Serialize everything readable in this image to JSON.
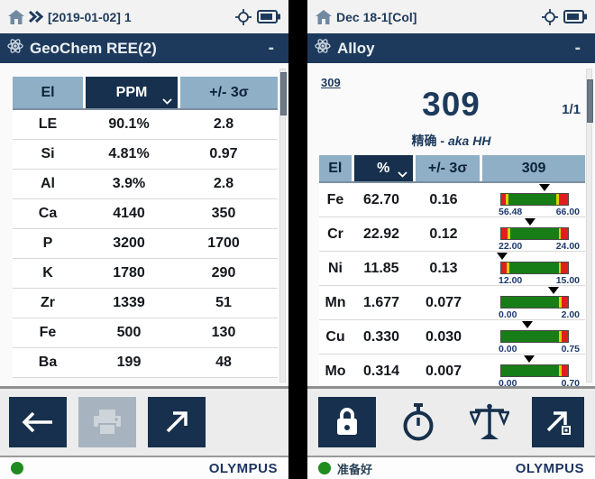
{
  "colors": {
    "navy": "#1d3a5c",
    "navy-deep": "#16304d",
    "header-blue": "#8fafc7",
    "green": "#177d17",
    "red": "#e11d1d",
    "yellow": "#e0d000",
    "status-green": "#1f8c1f",
    "disabled": "#a7b3bf"
  },
  "icons": {
    "home": "house glyph",
    "history-chevrons": "double right chevrons",
    "gps-crosshair": "circle with ticks",
    "battery": "battery nearly full",
    "app": "atom symbol",
    "sort": "chevron-down",
    "back": "left arrow",
    "print": "printer",
    "export": "north-east arrow",
    "lock": "padlock",
    "timer": "stopwatch",
    "weigh": "balance scale",
    "export-doc": "north-east arrow with square"
  },
  "left_screen": {
    "topbar": {
      "title": "[2019-01-02] 1"
    },
    "titlebar": {
      "title": "GeoChem REE(2)",
      "minimize": "-"
    },
    "table": {
      "headers": [
        "El",
        "PPM",
        "+/- 3σ"
      ],
      "sorted_by": "PPM",
      "rows": [
        {
          "el": "LE",
          "value": "90.1%",
          "sigma": "2.8"
        },
        {
          "el": "Si",
          "value": "4.81%",
          "sigma": "0.97"
        },
        {
          "el": "Al",
          "value": "3.9%",
          "sigma": "2.8"
        },
        {
          "el": "Ca",
          "value": "4140",
          "sigma": "350"
        },
        {
          "el": "P",
          "value": "3200",
          "sigma": "1700"
        },
        {
          "el": "K",
          "value": "1780",
          "sigma": "290"
        },
        {
          "el": "Zr",
          "value": "1339",
          "sigma": "51"
        },
        {
          "el": "Fe",
          "value": "500",
          "sigma": "130"
        },
        {
          "el": "Ba",
          "value": "199",
          "sigma": "48"
        }
      ]
    },
    "status": {
      "brand": "OLYMPUS"
    }
  },
  "right_screen": {
    "topbar": {
      "title": "Dec 18-1[Col]"
    },
    "titlebar": {
      "title": "Alloy",
      "minimize": "-"
    },
    "result": {
      "link": "309",
      "grade": "309",
      "page": "1/1",
      "subtitle_prefix": "精确 - ",
      "subtitle_italic": "aka HH"
    },
    "table": {
      "headers": [
        "El",
        "%",
        "+/- 3σ",
        "309"
      ],
      "sorted_by": "%",
      "rows": [
        {
          "el": "Fe",
          "value": "62.70",
          "sigma": "0.16",
          "range_min": "56.48",
          "range_max": "66.00",
          "marker": 0.64,
          "segments": [
            [
              "red",
              7
            ],
            [
              "yellow",
              4
            ],
            [
              "green",
              72
            ],
            [
              "yellow",
              4
            ],
            [
              "red",
              13
            ]
          ]
        },
        {
          "el": "Cr",
          "value": "22.92",
          "sigma": "0.12",
          "range_min": "22.00",
          "range_max": "24.00",
          "marker": 0.44,
          "segments": [
            [
              "red",
              9
            ],
            [
              "yellow",
              4
            ],
            [
              "green",
              73
            ],
            [
              "yellow",
              3
            ],
            [
              "red",
              11
            ]
          ]
        },
        {
          "el": "Ni",
          "value": "11.85",
          "sigma": "0.13",
          "range_min": "12.00",
          "range_max": "15.00",
          "marker": 0.03,
          "segments": [
            [
              "red",
              8
            ],
            [
              "yellow",
              4
            ],
            [
              "green",
              74
            ],
            [
              "yellow",
              3
            ],
            [
              "red",
              11
            ]
          ]
        },
        {
          "el": "Mn",
          "value": "1.677",
          "sigma": "0.077",
          "range_min": "0.00",
          "range_max": "2.00",
          "marker": 0.77,
          "segments": [
            [
              "green",
              87
            ],
            [
              "yellow",
              4
            ],
            [
              "red",
              9
            ]
          ]
        },
        {
          "el": "Cu",
          "value": "0.330",
          "sigma": "0.030",
          "range_min": "0.00",
          "range_max": "0.75",
          "marker": 0.4,
          "segments": [
            [
              "green",
              86
            ],
            [
              "yellow",
              4
            ],
            [
              "red",
              10
            ]
          ]
        },
        {
          "el": "Mo",
          "value": "0.314",
          "sigma": "0.007",
          "range_min": "0.00",
          "range_max": "0.70",
          "marker": 0.42,
          "segments": [
            [
              "green",
              86
            ],
            [
              "yellow",
              4
            ],
            [
              "red",
              10
            ]
          ]
        }
      ]
    },
    "status": {
      "ready_text": "准备好",
      "brand": "OLYMPUS"
    }
  }
}
